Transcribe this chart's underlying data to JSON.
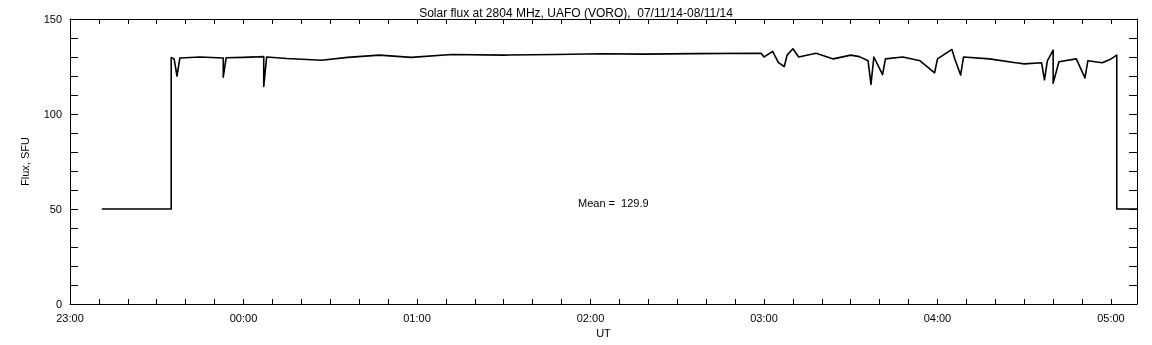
{
  "chart_data": {
    "type": "line",
    "title": "Solar flux at 2804 MHz, UAFO (VORO),  07/11/14-08/11/14",
    "xlabel": "UT",
    "ylabel": "Flux, SFU",
    "annotations": [
      "Mean =  129.9"
    ],
    "marker": "none",
    "grid": false,
    "xlim": [
      "--11-07T23:00",
      "--11-08T05:09"
    ],
    "ylim": [
      0,
      150
    ],
    "xticks": [
      {
        "value": "--11-07T23:00",
        "label": "23:00"
      },
      {
        "value": "--11-07T23:10",
        "label": null
      },
      {
        "value": "--11-07T23:20",
        "label": null
      },
      {
        "value": "--11-07T23:30",
        "label": null
      },
      {
        "value": "--11-07T23:40",
        "label": null
      },
      {
        "value": "--11-07T23:50",
        "label": null
      },
      {
        "value": "--11-08T00:00",
        "label": "00:00"
      },
      {
        "value": "--11-08T00:10",
        "label": null
      },
      {
        "value": "--11-08T00:20",
        "label": null
      },
      {
        "value": "--11-08T00:30",
        "label": null
      },
      {
        "value": "--11-08T00:40",
        "label": null
      },
      {
        "value": "--11-08T00:50",
        "label": null
      },
      {
        "value": "--11-08T01:00",
        "label": "01:00"
      },
      {
        "value": "--11-08T01:10",
        "label": null
      },
      {
        "value": "--11-08T01:20",
        "label": null
      },
      {
        "value": "--11-08T01:30",
        "label": null
      },
      {
        "value": "--11-08T01:40",
        "label": null
      },
      {
        "value": "--11-08T01:50",
        "label": null
      },
      {
        "value": "--11-08T02:00",
        "label": "02:00"
      },
      {
        "value": "--11-08T02:10",
        "label": null
      },
      {
        "value": "--11-08T02:20",
        "label": null
      },
      {
        "value": "--11-08T02:30",
        "label": null
      },
      {
        "value": "--11-08T02:40",
        "label": null
      },
      {
        "value": "--11-08T02:50",
        "label": null
      },
      {
        "value": "--11-08T03:00",
        "label": "03:00"
      },
      {
        "value": "--11-08T03:10",
        "label": null
      },
      {
        "value": "--11-08T03:20",
        "label": null
      },
      {
        "value": "--11-08T03:30",
        "label": null
      },
      {
        "value": "--11-08T03:40",
        "label": null
      },
      {
        "value": "--11-08T03:50",
        "label": null
      },
      {
        "value": "--11-08T04:00",
        "label": "04:00"
      },
      {
        "value": "--11-08T04:10",
        "label": null
      },
      {
        "value": "--11-08T04:20",
        "label": null
      },
      {
        "value": "--11-08T04:30",
        "label": null
      },
      {
        "value": "--11-08T04:40",
        "label": null
      },
      {
        "value": "--11-08T04:50",
        "label": null
      },
      {
        "value": "--11-08T05:00",
        "label": "05:00"
      }
    ],
    "yticks": [
      0,
      {
        "value": 10,
        "label": null
      },
      {
        "value": 20,
        "label": null
      },
      {
        "value": 30,
        "label": null
      },
      {
        "value": 40,
        "label": null
      },
      50,
      {
        "value": 60,
        "label": null
      },
      {
        "value": 70,
        "label": null
      },
      {
        "value": 80,
        "label": null
      },
      {
        "value": 90,
        "label": null
      },
      100,
      {
        "value": 110,
        "label": null
      },
      {
        "value": 120,
        "label": null
      },
      {
        "value": 130,
        "label": null
      },
      {
        "value": 140,
        "label": null
      },
      150
    ],
    "series": [
      {
        "color": "#000000",
        "x": [
          "--11-07T23:11",
          "--11-07T23:35",
          "--11-07T23:35",
          "--11-07T23:36",
          "--11-07T23:37",
          "--11-07T23:38",
          "--11-07T23:45",
          "--11-07T23:53",
          "--11-07T23:53",
          "--11-07T23:54",
          "--11-08T00:00",
          "--11-08T00:07",
          "--11-08T00:07",
          "--11-08T00:08",
          "--11-08T00:15",
          "--11-08T00:27",
          "--11-08T00:36",
          "--11-08T00:47",
          "--11-08T00:58",
          "--11-08T01:12",
          "--11-08T01:30",
          "--11-08T01:48",
          "--11-08T02:04",
          "--11-08T02:18",
          "--11-08T02:36",
          "--11-08T02:59",
          "--11-08T03:00",
          "--11-08T03:03",
          "--11-08T03:05",
          "--11-08T03:07",
          "--11-08T03:08",
          "--11-08T03:10",
          "--11-08T03:12",
          "--11-08T03:18",
          "--11-08T03:24",
          "--11-08T03:30",
          "--11-08T03:33",
          "--11-08T03:36",
          "--11-08T03:37",
          "--11-08T03:38",
          "--11-08T03:41",
          "--11-08T03:42",
          "--11-08T03:48",
          "--11-08T03:54",
          "--11-08T03:59",
          "--11-08T04:00",
          "--11-08T04:05",
          "--11-08T04:06",
          "--11-08T04:08",
          "--11-08T04:09",
          "--11-08T04:18",
          "--11-08T04:27",
          "--11-08T04:30",
          "--11-08T04:36",
          "--11-08T04:37",
          "--11-08T04:38",
          "--11-08T04:40",
          "--11-08T04:40",
          "--11-08T04:42",
          "--11-08T04:48",
          "--11-08T04:51",
          "--11-08T04:52",
          "--11-08T04:57",
          "--11-08T05:00",
          "--11-08T05:02",
          "--11-08T05:02",
          "--11-08T05:09"
        ],
        "values": [
          50,
          50,
          129.7,
          129,
          120,
          129.5,
          130,
          129.5,
          119.4,
          129.6,
          129.8,
          130.2,
          114.5,
          130,
          129.2,
          128.3,
          129.8,
          131,
          129.8,
          131.3,
          131,
          131.3,
          131.7,
          131.5,
          131.8,
          132,
          130,
          133,
          127,
          125,
          131,
          134.3,
          130,
          132,
          129,
          131,
          130.2,
          128,
          115.6,
          130,
          120.7,
          129,
          130,
          128,
          121.7,
          129,
          134,
          129,
          120.5,
          130,
          129,
          127,
          126.4,
          127,
          118,
          128,
          133.6,
          116.2,
          127.5,
          129,
          119,
          128,
          127,
          129,
          131,
          50,
          50
        ]
      }
    ]
  }
}
